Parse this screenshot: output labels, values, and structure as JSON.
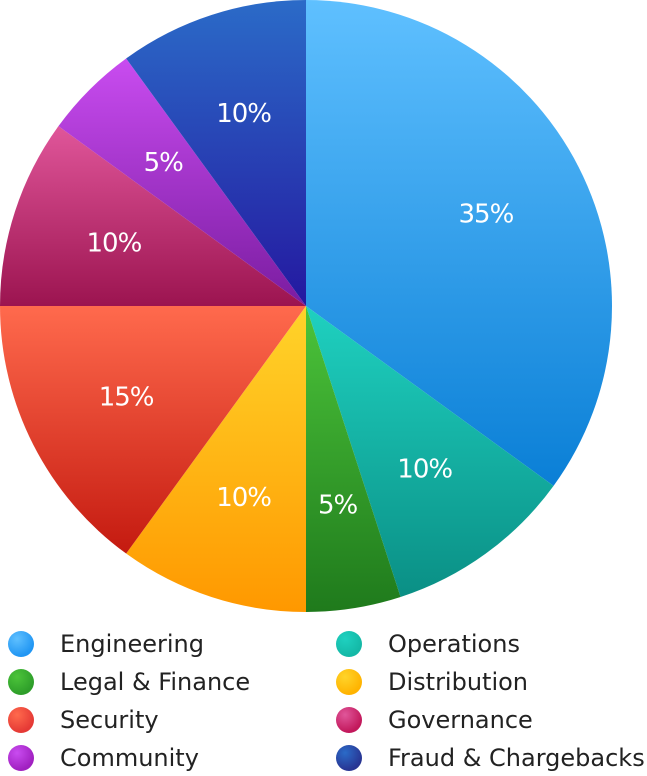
{
  "chart_data": {
    "type": "pie",
    "title": "",
    "slices": [
      {
        "label": "Engineering",
        "value": 35,
        "display": "35%",
        "color": "#2196f3",
        "color_light": "#5fc0ff",
        "color_dark": "#0a7fd6",
        "icon": "engineering-swatch-icon"
      },
      {
        "label": "Operations",
        "value": 10,
        "display": "10%",
        "color": "#14b8a6",
        "color_light": "#1fd1c0",
        "color_dark": "#0a8f85",
        "icon": "operations-swatch-icon"
      },
      {
        "label": "Legal & Finance",
        "value": 5,
        "display": "5%",
        "color": "#2e9e2a",
        "color_light": "#4cc43a",
        "color_dark": "#1f7a1c",
        "icon": "legal-finance-swatch-icon"
      },
      {
        "label": "Distribution",
        "value": 10,
        "display": "10%",
        "color": "#ffb300",
        "color_light": "#ffd42a",
        "color_dark": "#ff9800",
        "icon": "distribution-swatch-icon"
      },
      {
        "label": "Security",
        "value": 15,
        "display": "15%",
        "color": "#e53935",
        "color_light": "#ff6a4d",
        "color_dark": "#c41a10",
        "icon": "security-swatch-icon"
      },
      {
        "label": "Governance",
        "value": 10,
        "display": "10%",
        "color": "#c2185b",
        "color_light": "#e0569a",
        "color_dark": "#9c1450",
        "icon": "governance-swatch-icon"
      },
      {
        "label": "Community",
        "value": 5,
        "display": "5%",
        "color": "#a020c0",
        "color_light": "#c94cf0",
        "color_dark": "#7a1ca0",
        "icon": "community-swatch-icon"
      },
      {
        "label": "Fraud & Chargebacks",
        "value": 10,
        "display": "10%",
        "color": "#283593",
        "color_light": "#2b6bc8",
        "color_dark": "#2418a0",
        "icon": "fraud-chargebacks-swatch-icon"
      }
    ],
    "start_angle_deg": 0,
    "direction": "clockwise",
    "legend_position": "bottom",
    "legend_columns": 2
  }
}
